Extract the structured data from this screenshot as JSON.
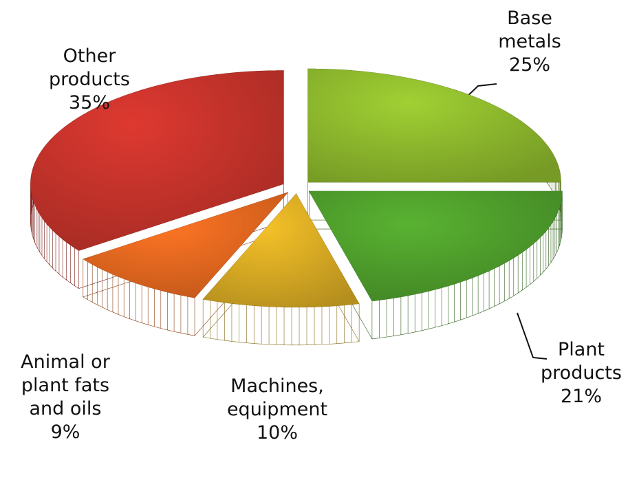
{
  "chart_data": {
    "type": "pie",
    "categories": [
      "Base metals",
      "Plant products",
      "Machines, equipment",
      "Animal or plant fats and oils",
      "Other products"
    ],
    "values": [
      25,
      21,
      10,
      9,
      35
    ],
    "value_labels": [
      "25%",
      "21%",
      "10%",
      "9%",
      "35%"
    ],
    "colors": [
      "#8bb52c",
      "#4d9b2b",
      "#d5a823",
      "#e2661f",
      "#c1322a"
    ]
  }
}
